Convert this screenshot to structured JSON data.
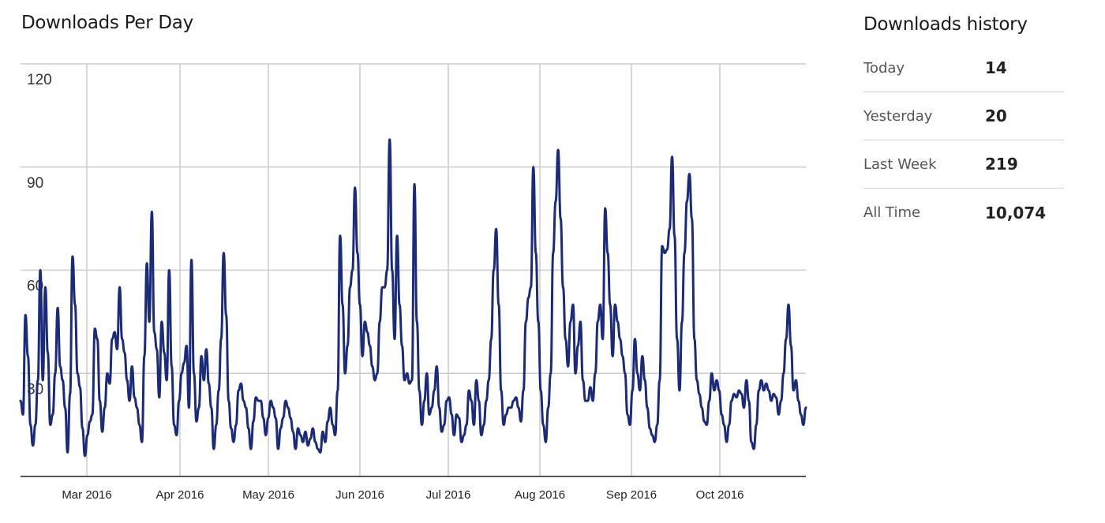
{
  "chart": {
    "title": "Downloads Per Day"
  },
  "history": {
    "title": "Downloads history",
    "rows": [
      {
        "label": "Today",
        "value": "14"
      },
      {
        "label": "Yesterday",
        "value": "20"
      },
      {
        "label": "Last Week",
        "value": "219"
      },
      {
        "label": "All Time",
        "value": "10,074"
      }
    ]
  },
  "colors": {
    "line": "#1a2b7c",
    "grid": "#cccccc",
    "axis": "#555555"
  },
  "chart_data": {
    "type": "line",
    "title": "Downloads Per Day",
    "xlabel": "",
    "ylabel": "",
    "ylim": [
      0,
      120
    ],
    "yticks": [
      30,
      60,
      90,
      120
    ],
    "xticks": [
      "Mar 2016",
      "Apr 2016",
      "May 2016",
      "Jun 2016",
      "Jul 2016",
      "Aug 2016",
      "Sep 2016",
      "Oct 2016"
    ],
    "grid": true,
    "legend": "none",
    "x_start": "2016-02-08",
    "x_end": "2016-10-29",
    "series": [
      {
        "name": "Downloads",
        "values": [
          22,
          18,
          47,
          35,
          15,
          9,
          15,
          28,
          60,
          28,
          55,
          36,
          15,
          18,
          30,
          49,
          32,
          28,
          20,
          7,
          24,
          64,
          50,
          30,
          26,
          14,
          6,
          12,
          16,
          18,
          43,
          40,
          22,
          13,
          20,
          30,
          27,
          40,
          42,
          37,
          55,
          40,
          36,
          28,
          22,
          32,
          23,
          20,
          15,
          10,
          35,
          62,
          45,
          77,
          42,
          37,
          23,
          45,
          36,
          28,
          60,
          32,
          15,
          12,
          22,
          30,
          33,
          38,
          20,
          63,
          30,
          16,
          20,
          35,
          28,
          37,
          27,
          20,
          8,
          15,
          25,
          40,
          65,
          47,
          22,
          14,
          10,
          15,
          25,
          27,
          22,
          20,
          14,
          8,
          16,
          23,
          22,
          22,
          17,
          12,
          17,
          22,
          20,
          17,
          8,
          14,
          17,
          22,
          20,
          17,
          13,
          8,
          14,
          12,
          10,
          13,
          9,
          11,
          14,
          10,
          8,
          7,
          13,
          10,
          16,
          20,
          15,
          12,
          25,
          70,
          50,
          30,
          38,
          55,
          60,
          84,
          65,
          50,
          35,
          45,
          42,
          38,
          32,
          28,
          30,
          45,
          55,
          55,
          60,
          98,
          60,
          40,
          70,
          50,
          38,
          28,
          30,
          27,
          28,
          85,
          45,
          25,
          15,
          22,
          30,
          18,
          20,
          25,
          32,
          20,
          13,
          15,
          22,
          23,
          18,
          12,
          18,
          17,
          10,
          12,
          15,
          25,
          22,
          15,
          28,
          22,
          12,
          15,
          22,
          28,
          40,
          60,
          72,
          50,
          25,
          15,
          18,
          20,
          20,
          22,
          23,
          20,
          16,
          25,
          45,
          52,
          55,
          90,
          65,
          45,
          25,
          15,
          10,
          20,
          30,
          65,
          80,
          95,
          75,
          55,
          40,
          32,
          45,
          50,
          30,
          38,
          45,
          28,
          22,
          22,
          26,
          22,
          30,
          45,
          50,
          40,
          78,
          65,
          50,
          35,
          50,
          45,
          40,
          35,
          30,
          18,
          15,
          25,
          40,
          30,
          25,
          35,
          28,
          20,
          14,
          12,
          10,
          15,
          28,
          67,
          65,
          66,
          72,
          93,
          70,
          40,
          25,
          45,
          65,
          80,
          88,
          75,
          40,
          28,
          24,
          20,
          16,
          15,
          22,
          30,
          25,
          28,
          25,
          18,
          15,
          10,
          15,
          22,
          24,
          23,
          25,
          24,
          20,
          28,
          22,
          10,
          8,
          15,
          25,
          28,
          25,
          27,
          25,
          22,
          24,
          23,
          18,
          22,
          30,
          40,
          50,
          38,
          25,
          28,
          22,
          18,
          15,
          20
        ]
      }
    ]
  }
}
